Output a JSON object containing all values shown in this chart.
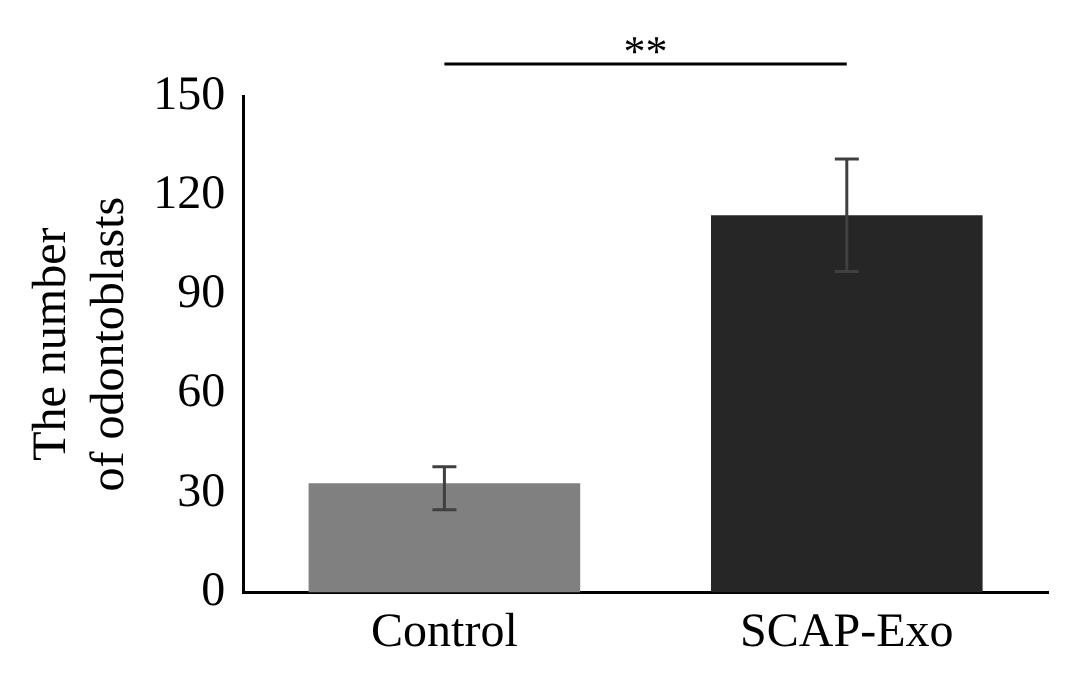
{
  "chart_data": {
    "type": "bar",
    "ylabel": "The number of odontoblasts",
    "categories": [
      "Control",
      "SCAP-Exo"
    ],
    "values": [
      33,
      114
    ],
    "colors": [
      "#808080",
      "#262626"
    ],
    "errors": [
      [
        25,
        38
      ],
      [
        97,
        131
      ]
    ],
    "ylim": [
      0,
      150
    ],
    "yticks": [
      0,
      30,
      60,
      90,
      120,
      150
    ],
    "grid": false,
    "legend": false,
    "annotations": [
      "**"
    ]
  }
}
